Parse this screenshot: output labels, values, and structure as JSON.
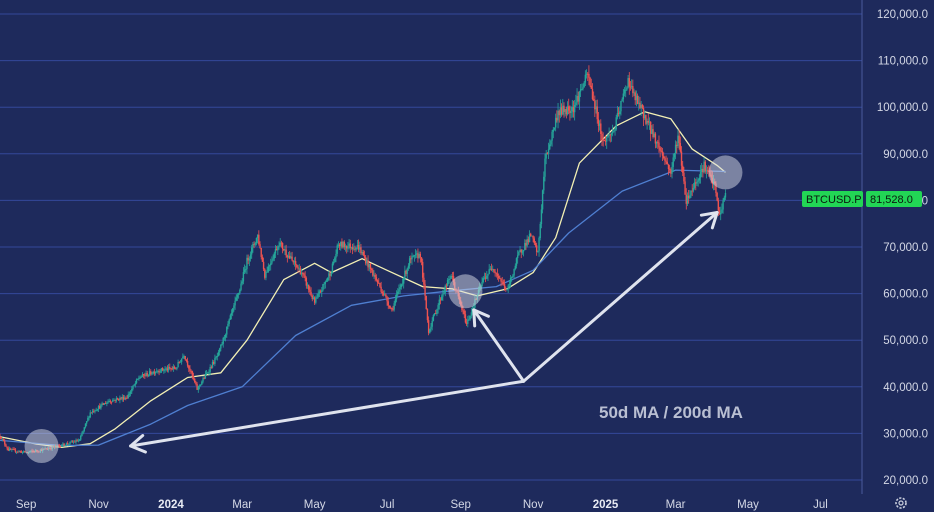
{
  "chart_data": {
    "type": "candlestick",
    "symbol": "BTCUSD.P",
    "last_price": 81528.0,
    "last_price_label": "81,528.0",
    "y_ticks": [
      20000,
      30000,
      40000,
      50000,
      60000,
      70000,
      80000,
      90000,
      100000,
      110000,
      120000
    ],
    "y_tick_labels": [
      "20,000.0",
      "30,000.0",
      "40,000.0",
      "50,000.0",
      "60,000.0",
      "70,000.0",
      "80,000.0",
      "90,000.0",
      "100,000.0",
      "110,000.0",
      "120,000.0"
    ],
    "ylim": [
      17000,
      123000
    ],
    "x_ticks": [
      {
        "date": "2023-09-01",
        "label": "Sep",
        "bold": false
      },
      {
        "date": "2023-11-01",
        "label": "Nov",
        "bold": false
      },
      {
        "date": "2024-01-01",
        "label": "2024",
        "bold": true
      },
      {
        "date": "2024-03-01",
        "label": "Mar",
        "bold": false
      },
      {
        "date": "2024-05-01",
        "label": "May",
        "bold": false
      },
      {
        "date": "2024-07-01",
        "label": "Jul",
        "bold": false
      },
      {
        "date": "2024-09-01",
        "label": "Sep",
        "bold": false
      },
      {
        "date": "2024-11-01",
        "label": "Nov",
        "bold": false
      },
      {
        "date": "2025-01-01",
        "label": "2025",
        "bold": true
      },
      {
        "date": "2025-03-01",
        "label": "Mar",
        "bold": false
      },
      {
        "date": "2025-05-01",
        "label": "May",
        "bold": false
      },
      {
        "date": "2025-07-01",
        "label": "Jul",
        "bold": false
      }
    ],
    "xlim": [
      "2023-08-10",
      "2025-08-05"
    ],
    "price_path": [
      [
        "2023-08-10",
        29500
      ],
      [
        "2023-08-17",
        26500
      ],
      [
        "2023-09-01",
        25900
      ],
      [
        "2023-09-15",
        26500
      ],
      [
        "2023-10-01",
        27500
      ],
      [
        "2023-10-16",
        28500
      ],
      [
        "2023-10-25",
        34500
      ],
      [
        "2023-11-10",
        37000
      ],
      [
        "2023-11-25",
        37800
      ],
      [
        "2023-12-05",
        42000
      ],
      [
        "2023-12-20",
        43500
      ],
      [
        "2024-01-05",
        44000
      ],
      [
        "2024-01-12",
        47000
      ],
      [
        "2024-01-23",
        39500
      ],
      [
        "2024-02-10",
        47000
      ],
      [
        "2024-02-28",
        61000
      ],
      [
        "2024-03-05",
        67000
      ],
      [
        "2024-03-14",
        72500
      ],
      [
        "2024-03-20",
        64000
      ],
      [
        "2024-04-01",
        71000
      ],
      [
        "2024-04-12",
        67000
      ],
      [
        "2024-04-20",
        64500
      ],
      [
        "2024-05-01",
        58000
      ],
      [
        "2024-05-15",
        65000
      ],
      [
        "2024-05-21",
        70500
      ],
      [
        "2024-06-07",
        70000
      ],
      [
        "2024-06-25",
        61500
      ],
      [
        "2024-07-05",
        56500
      ],
      [
        "2024-07-20",
        67000
      ],
      [
        "2024-07-29",
        68500
      ],
      [
        "2024-08-05",
        52000
      ],
      [
        "2024-08-15",
        59000
      ],
      [
        "2024-08-24",
        64000
      ],
      [
        "2024-09-06",
        53500
      ],
      [
        "2024-09-20",
        63000
      ],
      [
        "2024-09-28",
        65800
      ],
      [
        "2024-10-10",
        60500
      ],
      [
        "2024-10-20",
        68500
      ],
      [
        "2024-10-30",
        72500
      ],
      [
        "2024-11-05",
        68500
      ],
      [
        "2024-11-11",
        88500
      ],
      [
        "2024-11-22",
        99000
      ],
      [
        "2024-12-05",
        100000
      ],
      [
        "2024-12-17",
        107000
      ],
      [
        "2024-12-30",
        92500
      ],
      [
        "2025-01-08",
        95000
      ],
      [
        "2025-01-20",
        106000
      ],
      [
        "2025-01-24",
        103000
      ],
      [
        "2025-02-03",
        98000
      ],
      [
        "2025-02-25",
        86000
      ],
      [
        "2025-03-03",
        94000
      ],
      [
        "2025-03-10",
        80000
      ],
      [
        "2025-03-25",
        87500
      ],
      [
        "2025-04-03",
        83000
      ],
      [
        "2025-04-07",
        76500
      ],
      [
        "2025-04-12",
        81528
      ]
    ],
    "series": [
      {
        "name": "50d MA",
        "color": "#f3f0b4",
        "points": [
          [
            "2023-08-10",
            29300
          ],
          [
            "2023-09-10",
            27700
          ],
          [
            "2023-10-01",
            27000
          ],
          [
            "2023-10-25",
            27800
          ],
          [
            "2023-11-15",
            31000
          ],
          [
            "2023-12-15",
            37000
          ],
          [
            "2024-01-15",
            42000
          ],
          [
            "2024-02-12",
            43000
          ],
          [
            "2024-03-05",
            50000
          ],
          [
            "2024-04-05",
            63000
          ],
          [
            "2024-05-01",
            66500
          ],
          [
            "2024-05-15",
            64500
          ],
          [
            "2024-06-10",
            67500
          ],
          [
            "2024-07-01",
            65000
          ],
          [
            "2024-07-31",
            61500
          ],
          [
            "2024-08-25",
            61000
          ],
          [
            "2024-09-15",
            59500
          ],
          [
            "2024-10-10",
            61000
          ],
          [
            "2024-11-01",
            64500
          ],
          [
            "2024-11-20",
            72000
          ],
          [
            "2024-12-10",
            88000
          ],
          [
            "2025-01-10",
            96000
          ],
          [
            "2025-02-03",
            99000
          ],
          [
            "2025-02-25",
            97500
          ],
          [
            "2025-03-15",
            91000
          ],
          [
            "2025-04-05",
            87500
          ],
          [
            "2025-04-12",
            86000
          ]
        ]
      },
      {
        "name": "200d MA",
        "color": "#4f7fd1",
        "points": [
          [
            "2023-08-10",
            28500
          ],
          [
            "2023-10-01",
            27400
          ],
          [
            "2023-11-01",
            27500
          ],
          [
            "2023-12-15",
            32000
          ],
          [
            "2024-01-15",
            36000
          ],
          [
            "2024-03-01",
            40000
          ],
          [
            "2024-04-15",
            51000
          ],
          [
            "2024-06-01",
            57500
          ],
          [
            "2024-07-15",
            59500
          ],
          [
            "2024-08-20",
            60500
          ],
          [
            "2024-10-01",
            61500
          ],
          [
            "2024-11-01",
            65000
          ],
          [
            "2024-12-01",
            73000
          ],
          [
            "2025-01-15",
            82000
          ],
          [
            "2025-03-01",
            86500
          ],
          [
            "2025-04-12",
            86200
          ]
        ]
      }
    ],
    "annotation": "50d MA / 200d MA",
    "highlight_circles": [
      [
        "2023-09-14",
        27300
      ],
      [
        "2024-09-05",
        60500
      ],
      [
        "2025-04-12",
        86000
      ]
    ],
    "arrows": {
      "origin": [
        "2024-10-24",
        41200
      ],
      "targets": [
        [
          "2023-11-28",
          27300
        ],
        [
          "2024-09-12",
          56500
        ],
        [
          "2025-04-05",
          77400
        ]
      ]
    },
    "colors": {
      "background": "#1e2a5c",
      "grid": "#34489a",
      "up": "#26a69a",
      "down": "#ef5350",
      "badge": "#22d655",
      "arrow": "#dfe3ee"
    }
  }
}
